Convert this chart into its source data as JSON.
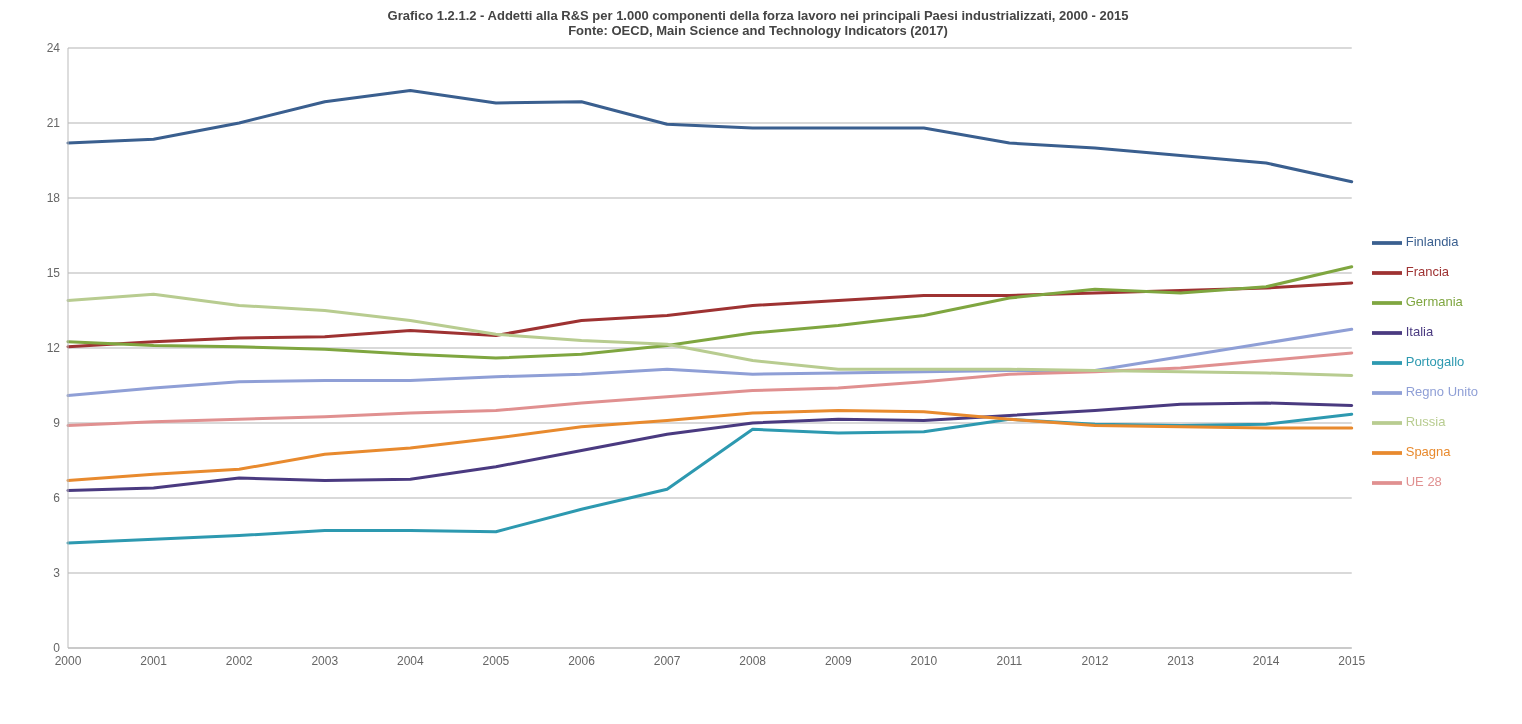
{
  "chart_data": {
    "type": "line",
    "title": "Grafico 1.2.1.2 -  Addetti alla R&S per 1.000 componenti della forza lavoro nei principali Paesi industrializzati, 2000 - 2015",
    "subtitle": "Fonte: OECD, Main Science and Technology Indicators (2017)",
    "categories": [
      "2000",
      "2001",
      "2002",
      "2003",
      "2004",
      "2005",
      "2006",
      "2007",
      "2008",
      "2009",
      "2010",
      "2011",
      "2012",
      "2013",
      "2014",
      "2015"
    ],
    "ylim": [
      0,
      24
    ],
    "yticks": [
      0,
      3,
      6,
      9,
      12,
      15,
      18,
      21,
      24
    ],
    "grid": "y",
    "legend": "right",
    "marker": "none",
    "line_style": "solid",
    "series": [
      {
        "name": "Finlandia",
        "color": "#3a5f8f",
        "values": [
          20.2,
          20.35,
          21.0,
          21.85,
          22.3,
          21.8,
          21.85,
          20.95,
          20.8,
          20.8,
          20.8,
          20.2,
          20.0,
          19.7,
          19.4,
          18.65
        ]
      },
      {
        "name": "Francia",
        "color": "#9e3232",
        "values": [
          12.05,
          12.25,
          12.4,
          12.45,
          12.7,
          12.5,
          13.1,
          13.3,
          13.7,
          13.9,
          14.1,
          14.1,
          14.2,
          14.3,
          14.4,
          14.6
        ]
      },
      {
        "name": "Germania",
        "color": "#7fa640",
        "values": [
          12.25,
          12.1,
          12.05,
          11.95,
          11.75,
          11.6,
          11.75,
          12.1,
          12.6,
          12.9,
          13.3,
          14.0,
          14.35,
          14.2,
          14.45,
          15.25
        ]
      },
      {
        "name": "Italia",
        "color": "#4a3a80",
        "values": [
          6.3,
          6.4,
          6.8,
          6.7,
          6.75,
          7.25,
          7.9,
          8.55,
          9.0,
          9.15,
          9.1,
          9.3,
          9.5,
          9.75,
          9.8,
          9.7
        ]
      },
      {
        "name": "Portogallo",
        "color": "#2d99b0",
        "values": [
          4.2,
          4.35,
          4.5,
          4.7,
          4.7,
          4.65,
          5.55,
          6.35,
          8.75,
          8.6,
          8.65,
          9.15,
          8.95,
          8.9,
          8.95,
          9.35
        ]
      },
      {
        "name": "Spagna",
        "color": "#e88a2e",
        "values": [
          6.7,
          6.95,
          7.15,
          7.75,
          8.0,
          8.4,
          8.85,
          9.1,
          9.4,
          9.5,
          9.45,
          9.15,
          8.9,
          8.85,
          8.8,
          8.8
        ]
      },
      {
        "name": "Regno Unito",
        "color": "#8f9fd6",
        "values": [
          10.1,
          10.4,
          10.65,
          10.7,
          10.7,
          10.85,
          10.95,
          11.15,
          10.95,
          11.0,
          11.05,
          11.1,
          11.1,
          11.65,
          12.2,
          12.75
        ]
      },
      {
        "name": "UE 28",
        "color": "#e09090",
        "values": [
          8.9,
          9.05,
          9.15,
          9.25,
          9.4,
          9.5,
          9.8,
          10.05,
          10.3,
          10.4,
          10.65,
          10.95,
          11.05,
          11.2,
          11.5,
          11.8
        ]
      },
      {
        "name": "Russia",
        "color": "#b8cc90",
        "values": [
          13.9,
          14.15,
          13.7,
          13.5,
          13.1,
          12.55,
          12.3,
          12.15,
          11.5,
          11.15,
          11.15,
          11.15,
          11.1,
          11.05,
          11.0,
          10.9
        ]
      }
    ]
  }
}
